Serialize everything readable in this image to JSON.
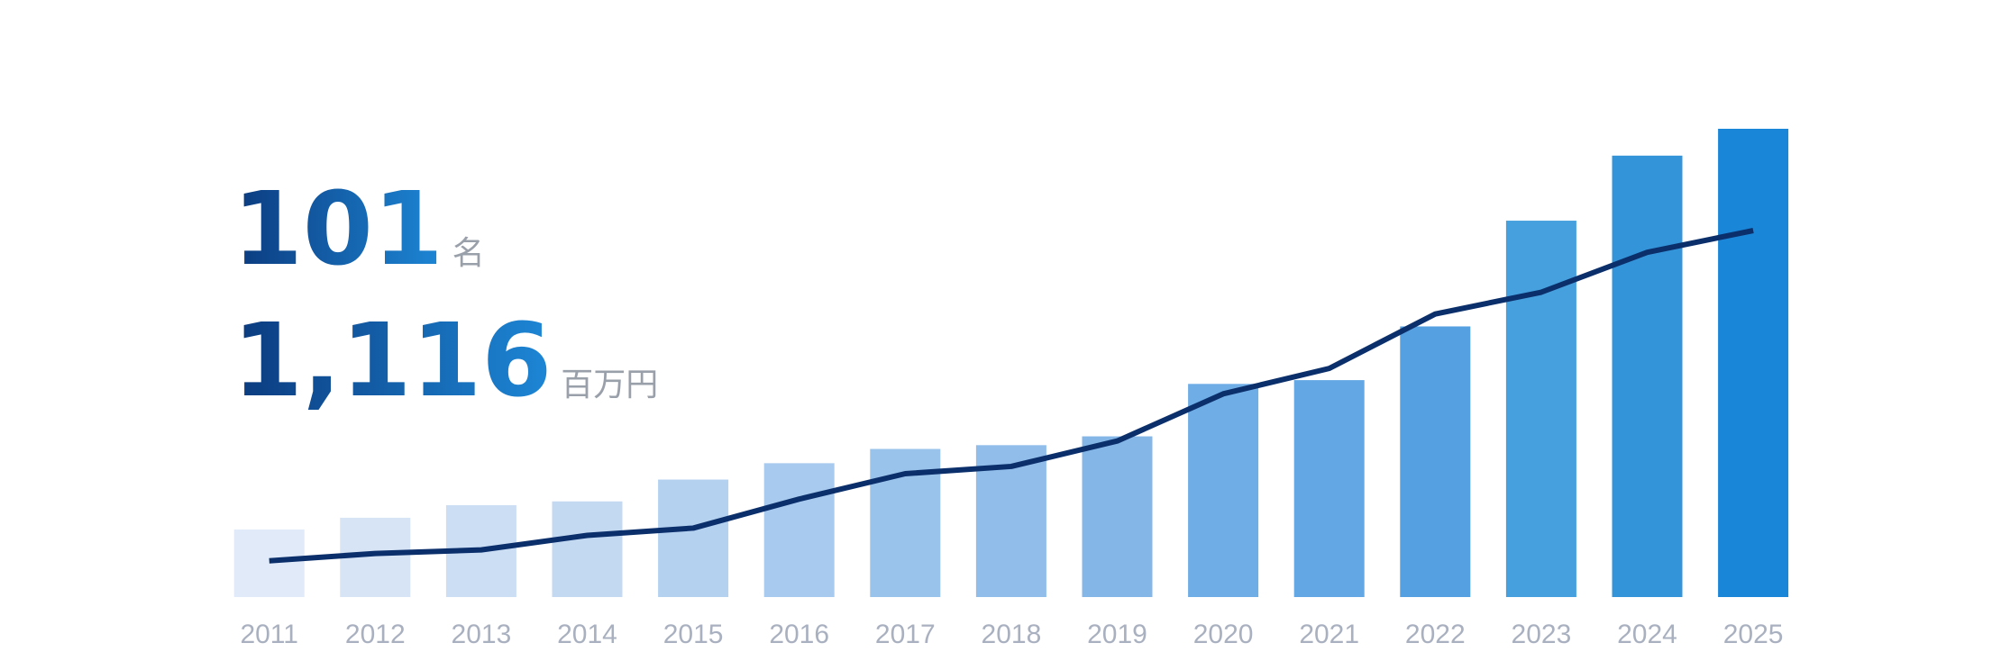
{
  "chart_data": {
    "type": "bar-line",
    "headline": [
      {
        "text": "101",
        "unit": "名"
      },
      {
        "text": "1,116",
        "unit": "百万円"
      }
    ],
    "categories": [
      "2011",
      "2012",
      "2013",
      "2014",
      "2015",
      "2016",
      "2017",
      "2018",
      "2019",
      "2020",
      "2021",
      "2022",
      "2023",
      "2024",
      "2025"
    ],
    "series": [
      {
        "type": "bar",
        "values": [
          161,
          189,
          219,
          228,
          280,
          319,
          353,
          362,
          383,
          508,
          517,
          645,
          897,
          1052,
          1116
        ],
        "colors": [
          "#e0eaf8",
          "#d6e4f6",
          "#cbdef4",
          "#c3d9f2",
          "#b4d1f0",
          "#a7caee",
          "#9ac3ec",
          "#90bdea",
          "#84b6e8",
          "#6fade6",
          "#63a7e4",
          "#55a0e1",
          "#46a0de",
          "#3494da",
          "#1a86d8"
        ]
      },
      {
        "type": "line",
        "color": "#0b2f6b",
        "values": [
          10,
          12,
          13,
          17,
          19,
          27,
          34,
          36,
          43,
          56,
          63,
          78,
          84,
          95,
          101
        ]
      }
    ]
  }
}
